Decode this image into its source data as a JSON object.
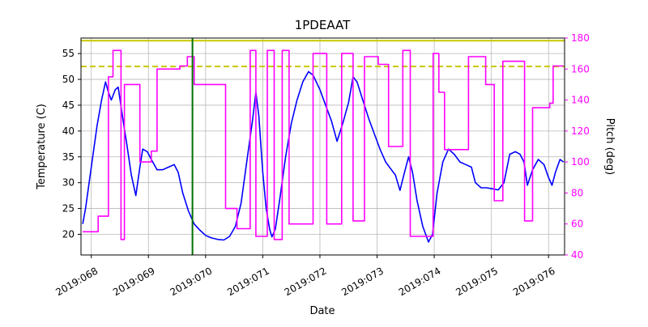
{
  "chart_data": {
    "type": "line",
    "title": "1PDEAAT",
    "xlabel": "Date",
    "ylabel_left": "Temperature (C)",
    "ylabel_right": "Pitch (deg)",
    "grid": true,
    "legend": "none",
    "xlim": [
      67.82,
      76.28
    ],
    "ylim_left": [
      16,
      58
    ],
    "ylim_right": [
      40,
      180
    ],
    "xticks": [
      {
        "value": 68,
        "label": "2019:068"
      },
      {
        "value": 69,
        "label": "2019:069"
      },
      {
        "value": 70,
        "label": "2019:070"
      },
      {
        "value": 71,
        "label": "2019:071"
      },
      {
        "value": 72,
        "label": "2019:072"
      },
      {
        "value": 73,
        "label": "2019:073"
      },
      {
        "value": 74,
        "label": "2019:074"
      },
      {
        "value": 75,
        "label": "2019:075"
      },
      {
        "value": 76,
        "label": "2019:076"
      }
    ],
    "yticks_left": [
      20,
      25,
      30,
      35,
      40,
      45,
      50,
      55
    ],
    "yticks_right": [
      40,
      60,
      80,
      100,
      120,
      140,
      160,
      180
    ],
    "colors": {
      "temperature": "#0000ff",
      "pitch": "#ff00ff",
      "limit": "#c8c800",
      "vline": "#007000",
      "grid": "#b8b8b8"
    },
    "limit_lines": [
      {
        "name": "upper-limit-line",
        "axis": "left",
        "value": 57.5,
        "dash": "solid",
        "color": "#c8c800"
      },
      {
        "name": "caution-limit-line",
        "axis": "left",
        "value": 52.5,
        "dash": "dashed",
        "color": "#c8c800"
      }
    ],
    "vlines": [
      {
        "name": "current-time-line",
        "x": 69.77,
        "color": "#007000"
      }
    ],
    "series": [
      {
        "name": "temperature",
        "axis": "left",
        "style": "line",
        "color": "#0000ff",
        "points": [
          [
            67.85,
            22
          ],
          [
            67.9,
            25
          ],
          [
            68.0,
            33
          ],
          [
            68.1,
            41
          ],
          [
            68.18,
            46
          ],
          [
            68.25,
            49.5
          ],
          [
            68.3,
            47.5
          ],
          [
            68.35,
            46
          ],
          [
            68.42,
            48
          ],
          [
            68.47,
            48.5
          ],
          [
            68.55,
            42.5
          ],
          [
            68.62,
            37.5
          ],
          [
            68.7,
            31.5
          ],
          [
            68.78,
            27.5
          ],
          [
            68.85,
            33
          ],
          [
            68.9,
            36.5
          ],
          [
            68.98,
            36
          ],
          [
            69.05,
            34.5
          ],
          [
            69.15,
            32.5
          ],
          [
            69.25,
            32.5
          ],
          [
            69.35,
            33
          ],
          [
            69.45,
            33.5
          ],
          [
            69.52,
            32
          ],
          [
            69.6,
            28
          ],
          [
            69.7,
            24.5
          ],
          [
            69.8,
            22
          ],
          [
            69.9,
            20.8
          ],
          [
            70.0,
            19.8
          ],
          [
            70.1,
            19.3
          ],
          [
            70.22,
            19
          ],
          [
            70.32,
            18.9
          ],
          [
            70.42,
            19.6
          ],
          [
            70.52,
            21.5
          ],
          [
            70.62,
            26
          ],
          [
            70.72,
            34
          ],
          [
            70.82,
            42
          ],
          [
            70.88,
            47.5
          ],
          [
            70.93,
            43
          ],
          [
            71.0,
            32
          ],
          [
            71.06,
            25
          ],
          [
            71.12,
            21
          ],
          [
            71.16,
            19.5
          ],
          [
            71.22,
            21
          ],
          [
            71.3,
            27
          ],
          [
            71.4,
            35
          ],
          [
            71.5,
            41.5
          ],
          [
            71.6,
            46
          ],
          [
            71.7,
            49.5
          ],
          [
            71.8,
            51.5
          ],
          [
            71.88,
            50.8
          ],
          [
            72.0,
            48
          ],
          [
            72.1,
            45
          ],
          [
            72.2,
            42
          ],
          [
            72.3,
            38
          ],
          [
            72.4,
            41.5
          ],
          [
            72.5,
            45.5
          ],
          [
            72.58,
            50.5
          ],
          [
            72.65,
            49.5
          ],
          [
            72.75,
            46
          ],
          [
            72.85,
            42.5
          ],
          [
            72.95,
            39.5
          ],
          [
            73.05,
            36.5
          ],
          [
            73.15,
            34
          ],
          [
            73.25,
            32.5
          ],
          [
            73.32,
            31.5
          ],
          [
            73.4,
            28.5
          ],
          [
            73.48,
            32
          ],
          [
            73.55,
            35
          ],
          [
            73.62,
            32
          ],
          [
            73.7,
            26.5
          ],
          [
            73.8,
            21.5
          ],
          [
            73.9,
            18.5
          ],
          [
            73.97,
            20
          ],
          [
            74.05,
            28
          ],
          [
            74.15,
            34
          ],
          [
            74.25,
            36.5
          ],
          [
            74.35,
            35.5
          ],
          [
            74.45,
            34
          ],
          [
            74.55,
            33.5
          ],
          [
            74.65,
            33
          ],
          [
            74.72,
            30
          ],
          [
            74.82,
            29
          ],
          [
            74.92,
            29
          ],
          [
            75.02,
            28.8
          ],
          [
            75.12,
            28.6
          ],
          [
            75.22,
            30
          ],
          [
            75.32,
            35.5
          ],
          [
            75.42,
            36
          ],
          [
            75.5,
            35.5
          ],
          [
            75.57,
            34
          ],
          [
            75.63,
            29.5
          ],
          [
            75.72,
            32.5
          ],
          [
            75.82,
            34.5
          ],
          [
            75.92,
            33.5
          ],
          [
            76.0,
            31
          ],
          [
            76.06,
            29.5
          ],
          [
            76.12,
            32
          ],
          [
            76.2,
            34.5
          ],
          [
            76.26,
            34
          ]
        ]
      },
      {
        "name": "pitch",
        "axis": "right",
        "style": "step",
        "color": "#ff00ff",
        "points": [
          [
            67.85,
            55
          ],
          [
            68.12,
            65
          ],
          [
            68.3,
            155
          ],
          [
            68.38,
            172
          ],
          [
            68.52,
            50
          ],
          [
            68.58,
            150
          ],
          [
            68.85,
            100
          ],
          [
            69.05,
            107
          ],
          [
            69.15,
            160
          ],
          [
            69.55,
            162
          ],
          [
            69.68,
            168
          ],
          [
            69.8,
            150
          ],
          [
            70.35,
            70
          ],
          [
            70.55,
            57
          ],
          [
            70.78,
            172
          ],
          [
            70.88,
            52
          ],
          [
            71.08,
            172
          ],
          [
            71.2,
            50
          ],
          [
            71.34,
            172
          ],
          [
            71.46,
            60
          ],
          [
            71.88,
            170
          ],
          [
            72.12,
            60
          ],
          [
            72.38,
            170
          ],
          [
            72.58,
            62
          ],
          [
            72.78,
            168
          ],
          [
            73.02,
            163
          ],
          [
            73.2,
            110
          ],
          [
            73.45,
            172
          ],
          [
            73.58,
            52
          ],
          [
            73.98,
            170
          ],
          [
            74.08,
            145
          ],
          [
            74.18,
            108
          ],
          [
            74.6,
            168
          ],
          [
            74.9,
            150
          ],
          [
            75.05,
            75
          ],
          [
            75.2,
            165
          ],
          [
            75.58,
            62
          ],
          [
            75.72,
            135
          ],
          [
            76.02,
            138
          ],
          [
            76.08,
            162
          ],
          [
            76.26,
            162
          ]
        ]
      }
    ]
  }
}
